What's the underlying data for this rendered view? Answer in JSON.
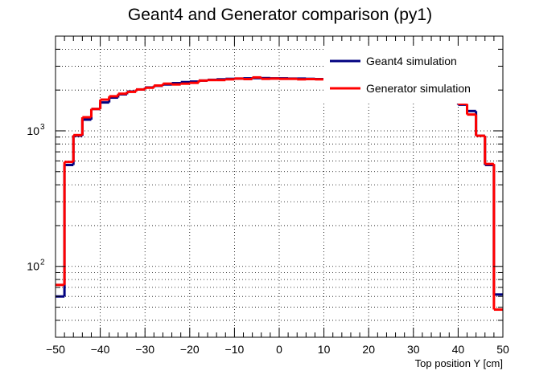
{
  "chart_data": {
    "type": "line",
    "title": "Geant4 and Generator comparison (py1)",
    "xlabel": "Top position Y [cm]",
    "ylabel": "",
    "xlim": [
      -50,
      50
    ],
    "ylim": [
      30,
      5000
    ],
    "yscale": "log",
    "grid": true,
    "legend_position": "top-right",
    "x_ticks": [
      -50,
      -40,
      -30,
      -20,
      -10,
      0,
      10,
      20,
      30,
      40,
      50
    ],
    "x_tick_labels": [
      "−50",
      "−40",
      "−30",
      "−20",
      "−10",
      "0",
      "10",
      "20",
      "30",
      "40",
      "50"
    ],
    "y_major_ticks": [
      100,
      1000
    ],
    "y_tick_labels": [
      {
        "base": "10",
        "exp": "2"
      },
      {
        "base": "10",
        "exp": "3"
      }
    ],
    "bin_edges": [
      -50,
      -48,
      -46,
      -44,
      -42,
      -40,
      -38,
      -36,
      -34,
      -32,
      -30,
      -28,
      -26,
      -24,
      -22,
      -20,
      -18,
      -16,
      -14,
      -12,
      -10,
      -8,
      -6,
      -4,
      -2,
      0,
      2,
      4,
      6,
      8,
      10,
      12,
      14,
      16,
      18,
      20,
      22,
      24,
      26,
      28,
      30,
      32,
      34,
      36,
      38,
      40,
      42,
      44,
      46,
      48,
      50
    ],
    "series": [
      {
        "name": "Geant4 simulation",
        "color": "#000080",
        "values": [
          60,
          560,
          920,
          1210,
          1450,
          1620,
          1760,
          1860,
          1950,
          2020,
          2090,
          2150,
          2200,
          2250,
          2290,
          2310,
          2350,
          2380,
          2400,
          2420,
          2430,
          2440,
          2450,
          2450,
          2440,
          2440,
          2430,
          2430,
          2420,
          2410,
          2400,
          2390,
          2370,
          2350,
          2320,
          2290,
          2260,
          2230,
          2190,
          2150,
          2100,
          2040,
          1980,
          1900,
          1800,
          1560,
          1400,
          920,
          560,
          62
        ]
      },
      {
        "name": "Generator simulation",
        "color": "#ff0000",
        "values": [
          73,
          590,
          930,
          1260,
          1450,
          1700,
          1800,
          1880,
          1940,
          2020,
          2080,
          2160,
          2230,
          2200,
          2230,
          2260,
          2350,
          2370,
          2370,
          2400,
          2430,
          2410,
          2480,
          2420,
          2430,
          2420,
          2420,
          2400,
          2410,
          2400,
          2390,
          2390,
          2370,
          2350,
          2320,
          2290,
          2260,
          2230,
          2190,
          2150,
          2100,
          2040,
          1980,
          1900,
          1800,
          1580,
          1320,
          920,
          570,
          48
        ]
      }
    ]
  }
}
